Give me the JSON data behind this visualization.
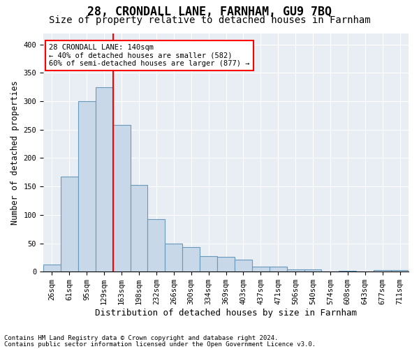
{
  "title": "28, CRONDALL LANE, FARNHAM, GU9 7BQ",
  "subtitle": "Size of property relative to detached houses in Farnham",
  "xlabel": "Distribution of detached houses by size in Farnham",
  "ylabel": "Number of detached properties",
  "footnote1": "Contains HM Land Registry data © Crown copyright and database right 2024.",
  "footnote2": "Contains public sector information licensed under the Open Government Licence v3.0.",
  "bin_labels": [
    "26sqm",
    "61sqm",
    "95sqm",
    "129sqm",
    "163sqm",
    "198sqm",
    "232sqm",
    "266sqm",
    "300sqm",
    "334sqm",
    "369sqm",
    "403sqm",
    "437sqm",
    "471sqm",
    "506sqm",
    "540sqm",
    "574sqm",
    "608sqm",
    "643sqm",
    "677sqm",
    "711sqm"
  ],
  "bar_values": [
    12,
    168,
    300,
    325,
    258,
    153,
    92,
    50,
    43,
    27,
    26,
    21,
    9,
    9,
    4,
    4,
    0,
    2,
    0,
    3,
    3
  ],
  "bar_color": "#c8d8e8",
  "bar_edgecolor": "#6699bb",
  "vline_x": 3.5,
  "vline_color": "red",
  "annotation_line1": "28 CRONDALL LANE: 140sqm",
  "annotation_line2": "← 40% of detached houses are smaller (582)",
  "annotation_line3": "60% of semi-detached houses are larger (877) →",
  "ylim": [
    0,
    420
  ],
  "yticks": [
    0,
    50,
    100,
    150,
    200,
    250,
    300,
    350,
    400
  ],
  "background_color": "#e8eef4",
  "grid_color": "#ffffff",
  "title_fontsize": 12,
  "subtitle_fontsize": 10,
  "xlabel_fontsize": 9,
  "ylabel_fontsize": 8.5,
  "tick_fontsize": 7.5,
  "footnote_fontsize": 6.5
}
